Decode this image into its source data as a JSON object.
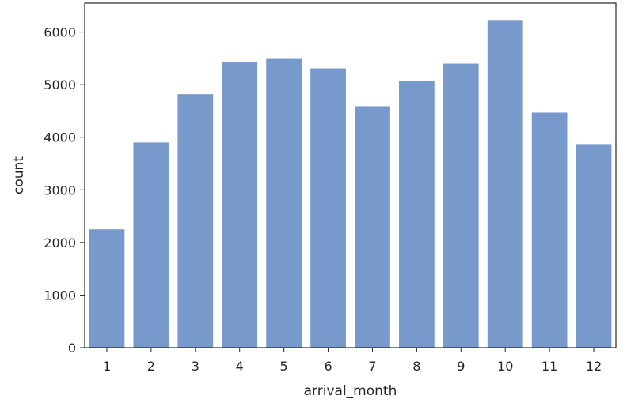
{
  "chart_data": {
    "type": "bar",
    "title": "",
    "xlabel": "arrival_month",
    "ylabel": "count",
    "categories": [
      "1",
      "2",
      "3",
      "4",
      "5",
      "6",
      "7",
      "8",
      "9",
      "10",
      "11",
      "12"
    ],
    "values": [
      2250,
      3900,
      4820,
      5430,
      5490,
      5310,
      4590,
      5070,
      5400,
      6230,
      4470,
      3870
    ],
    "ylim": [
      0,
      6550
    ],
    "yticks": [
      "0",
      "1000",
      "2000",
      "3000",
      "4000",
      "5000",
      "6000"
    ],
    "grid": false,
    "legend": "none",
    "bar_color": "#7799cc"
  }
}
